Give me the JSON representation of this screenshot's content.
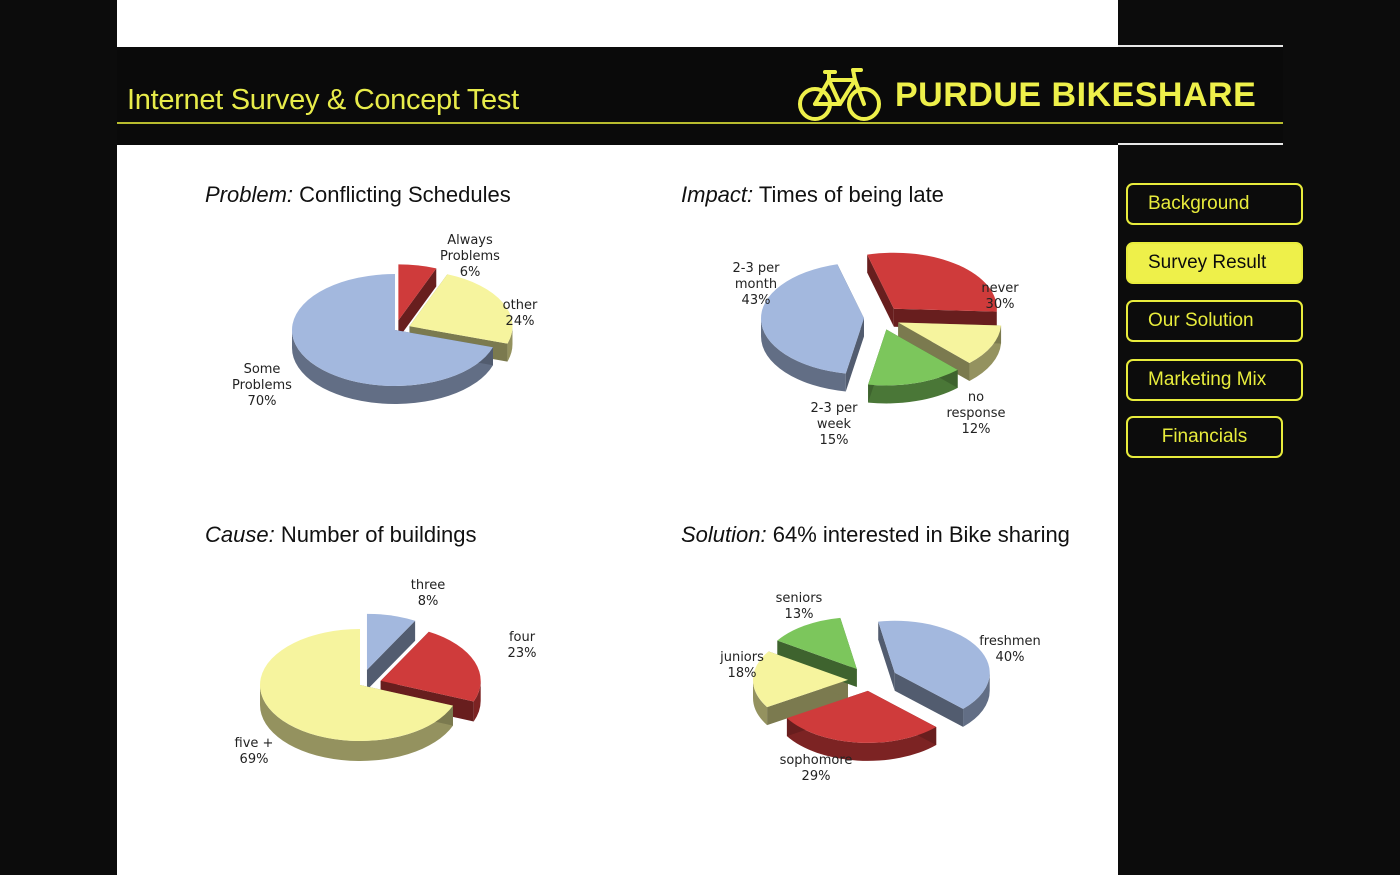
{
  "header": {
    "title": "Internet Survey & Concept Test",
    "brand": "PURDUE BIKESHARE"
  },
  "nav": {
    "items": [
      {
        "label": "Background",
        "active": false
      },
      {
        "label": "Survey Result",
        "active": true
      },
      {
        "label": "Our Solution",
        "active": false
      },
      {
        "label": "Marketing Mix",
        "active": false
      },
      {
        "label": "Financials",
        "active": false
      }
    ]
  },
  "colors": {
    "accent": "#eef04a",
    "blue": "#a3b8de",
    "red": "#cf3b3b",
    "yellow": "#f6f49e",
    "green": "#7cc65c"
  },
  "chart_data": [
    {
      "type": "pie",
      "title_prefix": "Problem:",
      "title": "Conflicting Schedules",
      "slices": [
        {
          "name": "Always Problems",
          "value": 6,
          "color": "#cf3b3b"
        },
        {
          "name": "other",
          "value": 24,
          "color": "#f6f49e"
        },
        {
          "name": "Some Problems",
          "value": 70,
          "color": "#a3b8de"
        }
      ]
    },
    {
      "type": "pie",
      "title_prefix": "Impact:",
      "title": "Times of being late",
      "slices": [
        {
          "name": "never",
          "value": 30,
          "color": "#cf3b3b"
        },
        {
          "name": "no response",
          "value": 12,
          "color": "#f6f49e"
        },
        {
          "name": "2-3 per week",
          "value": 15,
          "color": "#7cc65c"
        },
        {
          "name": "2-3 per month",
          "value": 43,
          "color": "#a3b8de"
        }
      ]
    },
    {
      "type": "pie",
      "title_prefix": "Cause:",
      "title": "Number of buildings",
      "slices": [
        {
          "name": "three",
          "value": 8,
          "color": "#a3b8de"
        },
        {
          "name": "four",
          "value": 23,
          "color": "#cf3b3b"
        },
        {
          "name": "five +",
          "value": 69,
          "color": "#f6f49e"
        }
      ]
    },
    {
      "type": "pie",
      "title_prefix": "Solution:",
      "title": "64% interested in Bike sharing",
      "slices": [
        {
          "name": "freshmen",
          "value": 40,
          "color": "#a3b8de"
        },
        {
          "name": "sophomore",
          "value": 29,
          "color": "#cf3b3b"
        },
        {
          "name": "juniors",
          "value": 18,
          "color": "#f6f49e"
        },
        {
          "name": "seniors",
          "value": 13,
          "color": "#7cc65c"
        }
      ]
    }
  ]
}
